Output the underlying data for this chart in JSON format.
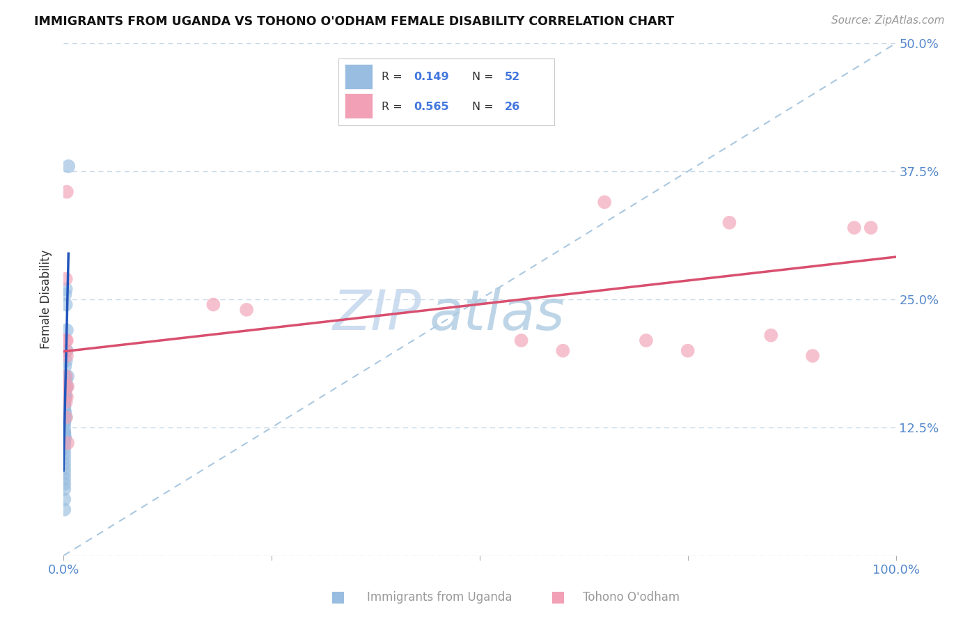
{
  "title": "IMMIGRANTS FROM UGANDA VS TOHONO O'ODHAM FEMALE DISABILITY CORRELATION CHART",
  "source": "Source: ZipAtlas.com",
  "ylabel": "Female Disability",
  "xlim": [
    0,
    1
  ],
  "ylim": [
    0,
    0.5
  ],
  "x_ticks": [
    0,
    0.25,
    0.5,
    0.75,
    1.0
  ],
  "x_tick_labels": [
    "0.0%",
    "",
    "",
    "",
    "100.0%"
  ],
  "y_ticks": [
    0,
    0.125,
    0.25,
    0.375,
    0.5
  ],
  "y_tick_labels": [
    "",
    "12.5%",
    "25.0%",
    "37.5%",
    "50.0%"
  ],
  "blue_color": "#99bde0",
  "pink_color": "#f2a0b5",
  "blue_line_color": "#2255bb",
  "pink_line_color": "#d94f6e",
  "dashed_line_color": "#aac8e0",
  "watermark_zip": "ZIP",
  "watermark_atlas": "atlas",
  "blue_scatter_x": [
    0.005,
    0.003,
    0.006,
    0.002,
    0.003,
    0.004,
    0.004,
    0.003,
    0.002,
    0.001,
    0.003,
    0.002,
    0.004,
    0.003,
    0.002,
    0.001,
    0.001,
    0.002,
    0.001,
    0.001,
    0.002,
    0.003,
    0.001,
    0.001,
    0.002,
    0.001,
    0.001,
    0.002,
    0.001,
    0.001,
    0.001,
    0.001,
    0.001,
    0.001,
    0.001,
    0.001,
    0.001,
    0.002,
    0.001,
    0.001,
    0.001,
    0.001,
    0.001,
    0.001,
    0.001,
    0.001,
    0.001,
    0.001,
    0.001,
    0.001,
    0.001,
    0.001
  ],
  "blue_scatter_y": [
    0.175,
    0.26,
    0.38,
    0.255,
    0.245,
    0.22,
    0.2,
    0.19,
    0.185,
    0.175,
    0.165,
    0.16,
    0.165,
    0.17,
    0.175,
    0.16,
    0.155,
    0.155,
    0.15,
    0.145,
    0.14,
    0.135,
    0.13,
    0.12,
    0.115,
    0.16,
    0.155,
    0.155,
    0.15,
    0.145,
    0.14,
    0.135,
    0.13,
    0.125,
    0.12,
    0.115,
    0.11,
    0.155,
    0.12,
    0.115,
    0.11,
    0.105,
    0.1,
    0.095,
    0.09,
    0.085,
    0.08,
    0.075,
    0.07,
    0.065,
    0.055,
    0.045
  ],
  "pink_scatter_x": [
    0.003,
    0.004,
    0.003,
    0.004,
    0.003,
    0.003,
    0.004,
    0.003,
    0.005,
    0.003,
    0.18,
    0.22,
    0.5,
    0.55,
    0.6,
    0.65,
    0.7,
    0.75,
    0.8,
    0.85,
    0.9,
    0.95,
    0.97,
    0.004,
    0.003,
    0.005
  ],
  "pink_scatter_y": [
    0.27,
    0.355,
    0.165,
    0.195,
    0.2,
    0.21,
    0.155,
    0.15,
    0.11,
    0.135,
    0.245,
    0.24,
    0.46,
    0.21,
    0.2,
    0.345,
    0.21,
    0.2,
    0.325,
    0.215,
    0.195,
    0.32,
    0.32,
    0.21,
    0.175,
    0.165
  ],
  "blue_line_x": [
    0.0,
    0.04
  ],
  "blue_line_y": [
    0.148,
    0.165
  ],
  "pink_line_x": [
    0.0,
    1.0
  ],
  "pink_line_y": [
    0.165,
    0.285
  ],
  "diag_line_x": [
    0.0,
    1.0
  ],
  "diag_line_y": [
    0.0,
    0.5
  ],
  "legend_blue_r": "0.149",
  "legend_blue_n": "52",
  "legend_pink_r": "0.565",
  "legend_pink_n": "26"
}
